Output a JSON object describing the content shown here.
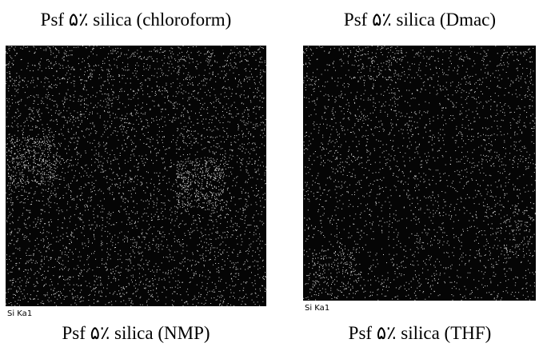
{
  "panels": [
    {
      "title": "Psf ۵٪ silica (chloroform)",
      "label": "Si Ka1",
      "caption": "Psf ۵٪ silica (NMP)"
    },
    {
      "title": "Psf ۵٪ silica (Dmac)",
      "label": "Si Ka1",
      "caption": "Psf ۵٪ silica (THF)"
    }
  ]
}
